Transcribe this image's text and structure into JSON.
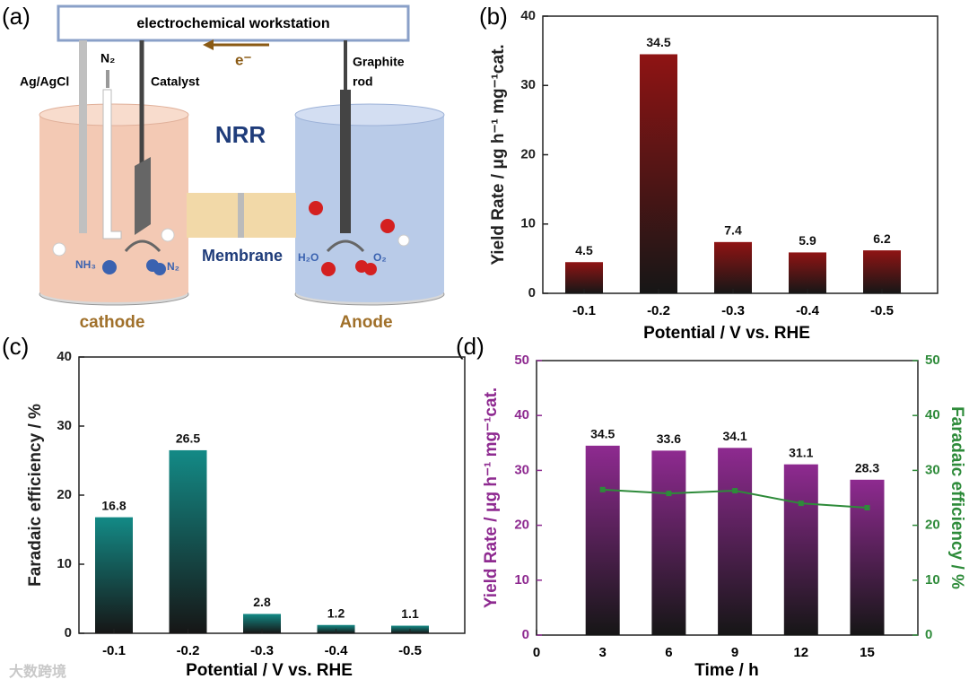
{
  "figure": {
    "panels": [
      "(a)",
      "(b)",
      "(c)",
      "(d)"
    ],
    "watermark": "大数跨境"
  },
  "diagram": {
    "workstation": "electrochemical workstation",
    "electron": "e⁻",
    "n2_in": "N₂",
    "reference": "Ag/AgCl",
    "catalyst": "Catalyst",
    "graphite_rod": [
      "Graphite",
      "rod"
    ],
    "reaction": "NRR",
    "membrane": "Membrane",
    "nh3": "NH₃",
    "n2": "N₂",
    "h2o": "H₂O",
    "o2": "O₂",
    "cathode": "cathode",
    "anode": "Anode"
  },
  "chart_data": [
    {
      "type": "bar",
      "categories": [
        "-0.1",
        "-0.2",
        "-0.3",
        "-0.4",
        "-0.5"
      ],
      "values": [
        4.5,
        34.5,
        7.4,
        5.9,
        6.2
      ],
      "color": "#8f1414",
      "ylim": [
        0,
        40
      ],
      "yticks": [
        0,
        10,
        20,
        30,
        40
      ],
      "xlabel": "Potential / V vs. RHE",
      "ylabel": "Yield Rate / μg h⁻¹ mg⁻¹cat."
    },
    {
      "type": "bar",
      "categories": [
        "-0.1",
        "-0.2",
        "-0.3",
        "-0.4",
        "-0.5"
      ],
      "values": [
        16.8,
        26.5,
        2.8,
        1.2,
        1.1
      ],
      "color": "#138a86",
      "ylim": [
        0,
        40
      ],
      "yticks": [
        0,
        10,
        20,
        30,
        40
      ],
      "xlabel": "Potential / V vs. RHE",
      "ylabel": "Faradaic efficiency / %"
    },
    {
      "type": "bar_line",
      "x": [
        3,
        6,
        9,
        12,
        15
      ],
      "xlim": [
        0,
        17.3
      ],
      "xticks": [
        0,
        3,
        6,
        9,
        12,
        15
      ],
      "ylim": [
        0,
        50
      ],
      "yticks": [
        0,
        10,
        20,
        30,
        40,
        50
      ],
      "y2lim": [
        0,
        50
      ],
      "y2ticks": [
        0,
        10,
        20,
        30,
        40,
        50
      ],
      "xlabel": "Time / h",
      "ylabel": "Yield Rate / μg h⁻¹ mg⁻¹cat.",
      "y2label": "Faradaic efficiency / %",
      "series": [
        {
          "color": "#8e2a90",
          "values": [
            34.5,
            33.6,
            34.1,
            31.1,
            28.3
          ]
        },
        {
          "color": "#2e8b3a",
          "axis": "y2",
          "values": [
            26.5,
            25.8,
            26.3,
            24.0,
            23.2
          ]
        }
      ]
    }
  ]
}
